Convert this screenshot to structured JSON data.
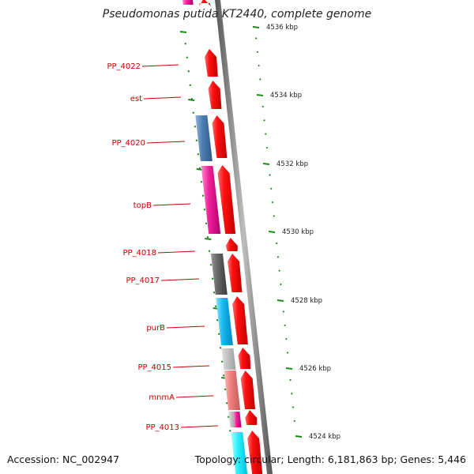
{
  "title": "Pseudomonas putida KT2440, complete genome",
  "footer": {
    "accession": "Accession: NC_002947",
    "summary": "Topology: circular; Length: 6,181,863 bp; Genes: 5,446"
  },
  "colors": {
    "forward_cds": "#ff0000",
    "backbone": "#888888",
    "tick": "#1a8a1a",
    "label": "#cc0000"
  },
  "ruler": [
    {
      "label": "4536 kbp"
    },
    {
      "label": "4534 kbp"
    },
    {
      "label": "4532 kbp"
    },
    {
      "label": "4530 kbp"
    },
    {
      "label": "4528 kbp"
    },
    {
      "label": "4526 kbp"
    },
    {
      "label": "4524 kbp"
    }
  ],
  "gene_labels": [
    {
      "name": "PP_4022"
    },
    {
      "name": "est"
    },
    {
      "name": "PP_4020"
    },
    {
      "name": "topB"
    },
    {
      "name": "PP_4018"
    },
    {
      "name": "PP_4017"
    },
    {
      "name": "purB"
    },
    {
      "name": "PP_4015"
    },
    {
      "name": "mnmA"
    },
    {
      "name": "PP_4013"
    }
  ]
}
